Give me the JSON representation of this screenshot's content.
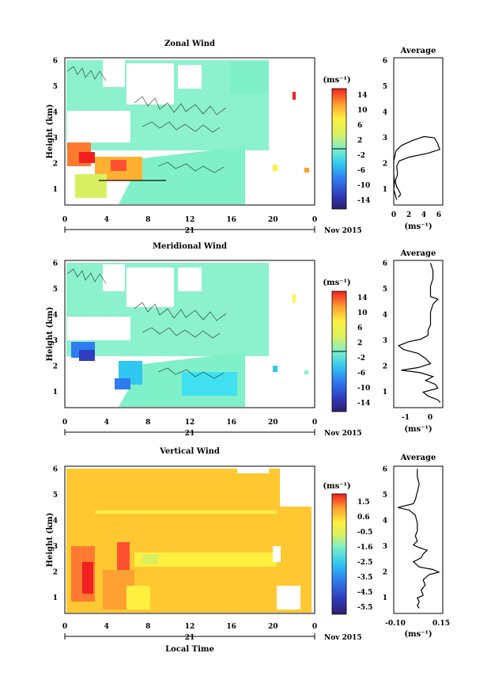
{
  "charts": [
    {
      "id": "zonal",
      "title": "Zonal Wind",
      "y_label": "Height (km)",
      "unit": "(ms⁻¹)",
      "cbar_ticks": [
        "14",
        "10",
        "6",
        "2",
        "-2",
        "-6",
        "-10",
        "-14"
      ],
      "avg_title": "Average",
      "avg_xticks": [
        "0",
        "2",
        "4",
        "6"
      ],
      "avg_unit": "(ms⁻¹)",
      "avg_profile": [
        [
          0.4,
          0.5
        ],
        [
          0.2,
          0.7
        ],
        [
          0.0,
          0.9
        ],
        [
          0.1,
          1.2
        ],
        [
          0.0,
          1.5
        ],
        [
          0.0,
          2.0
        ],
        [
          0.3,
          2.4
        ],
        [
          1.0,
          2.6
        ],
        [
          2.5,
          2.8
        ],
        [
          4.0,
          2.95
        ],
        [
          5.4,
          2.9
        ],
        [
          5.8,
          2.7
        ],
        [
          6.1,
          2.45
        ],
        [
          4.5,
          2.3
        ],
        [
          2.0,
          2.15
        ],
        [
          0.7,
          2.0
        ],
        [
          0.4,
          1.8
        ],
        [
          0.5,
          1.5
        ],
        [
          0.2,
          1.2
        ],
        [
          0.4,
          1.0
        ],
        [
          0.8,
          0.8
        ],
        [
          0.9,
          0.7
        ],
        [
          0.6,
          0.6
        ]
      ]
    },
    {
      "id": "meridional",
      "title": "Meridional Wind",
      "y_label": "Height (km)",
      "unit": "(ms⁻¹)",
      "cbar_ticks": [
        "14",
        "10",
        "6",
        "2",
        "-2",
        "-6",
        "-10",
        "-14"
      ],
      "avg_title": "Average",
      "avg_xticks": [
        "-1",
        "0"
      ],
      "avg_unit": "(ms⁻¹)",
      "avg_profile": [
        [
          0.0,
          5.9
        ],
        [
          0.1,
          5.6
        ],
        [
          0.1,
          5.3
        ],
        [
          0.0,
          5.0
        ],
        [
          0.0,
          4.8
        ],
        [
          0.0,
          4.6
        ],
        [
          0.3,
          4.5
        ],
        [
          0.1,
          4.3
        ],
        [
          0.0,
          4.0
        ],
        [
          0.0,
          3.8
        ],
        [
          0.0,
          3.5
        ],
        [
          -0.1,
          3.3
        ],
        [
          -0.1,
          3.1
        ],
        [
          -0.4,
          2.95
        ],
        [
          -0.9,
          2.85
        ],
        [
          -1.3,
          2.7
        ],
        [
          -1.1,
          2.55
        ],
        [
          -0.5,
          2.4
        ],
        [
          -0.2,
          2.2
        ],
        [
          0.0,
          2.0
        ],
        [
          -0.5,
          1.85
        ],
        [
          -1.2,
          1.75
        ],
        [
          -0.4,
          1.65
        ],
        [
          0.1,
          1.5
        ],
        [
          -0.2,
          1.35
        ],
        [
          0.2,
          1.2
        ],
        [
          0.3,
          1.05
        ],
        [
          -0.3,
          0.9
        ],
        [
          -0.1,
          0.75
        ],
        [
          0.3,
          0.6
        ],
        [
          0.4,
          0.5
        ]
      ]
    },
    {
      "id": "vertical",
      "title": "Vertical Wind",
      "y_label": "Height (km)",
      "unit": "(ms⁻¹)",
      "cbar_ticks": [
        "1.5",
        "0.6",
        "-0.5",
        "-1.6",
        "-2.5",
        "-3.5",
        "-4.5",
        "-5.5"
      ],
      "avg_title": "Average",
      "avg_xticks": [
        "-0.10",
        "0.15"
      ],
      "avg_unit": "(ms⁻¹)",
      "avg_profile": [
        [
          0.02,
          5.9
        ],
        [
          0.02,
          5.6
        ],
        [
          0.03,
          5.3
        ],
        [
          0.02,
          5.0
        ],
        [
          0.01,
          4.7
        ],
        [
          0.0,
          4.55
        ],
        [
          -0.08,
          4.4
        ],
        [
          -0.02,
          4.3
        ],
        [
          0.01,
          4.1
        ],
        [
          0.02,
          3.8
        ],
        [
          0.02,
          3.5
        ],
        [
          0.01,
          3.3
        ],
        [
          0.02,
          3.1
        ],
        [
          0.0,
          2.95
        ],
        [
          0.03,
          2.85
        ],
        [
          0.07,
          2.75
        ],
        [
          0.05,
          2.6
        ],
        [
          0.04,
          2.45
        ],
        [
          0.0,
          2.3
        ],
        [
          0.03,
          2.1
        ],
        [
          0.1,
          2.0
        ],
        [
          0.13,
          1.9
        ],
        [
          0.08,
          1.8
        ],
        [
          0.05,
          1.6
        ],
        [
          0.06,
          1.4
        ],
        [
          0.04,
          1.2
        ],
        [
          0.05,
          1.0
        ],
        [
          0.02,
          0.9
        ],
        [
          0.03,
          0.75
        ],
        [
          0.02,
          0.6
        ],
        [
          0.03,
          0.5
        ]
      ]
    }
  ],
  "x_ticks": [
    "0",
    "4",
    "8",
    "12",
    "16",
    "20",
    "0"
  ],
  "date_day": "21",
  "date_month": "Nov 2015",
  "y_ticks": [
    "1",
    "2",
    "3",
    "4",
    "5",
    "6"
  ],
  "x_label": "Local Time",
  "chart_data": [
    {
      "type": "heatmap",
      "title": "Zonal Wind",
      "ylabel": "Height (km)",
      "xlabel": "",
      "xlim": [
        0,
        24
      ],
      "ylim": [
        0.3,
        6
      ],
      "colorbar": {
        "label": "(ms⁻¹)",
        "range": [
          -16,
          16
        ],
        "ticks": [
          14,
          10,
          6,
          2,
          -2,
          -6,
          -10,
          -14
        ]
      }
    },
    {
      "type": "line",
      "title": "Average",
      "xlabel": "(ms⁻¹)",
      "ylabel": "",
      "xlim": [
        0,
        6.5
      ],
      "ylim": [
        0.3,
        6
      ],
      "x": [
        0.4,
        0.2,
        0.0,
        0.1,
        0.0,
        0.0,
        0.3,
        1.0,
        2.5,
        4.0,
        5.4,
        5.8,
        6.1,
        4.5,
        2.0,
        0.7,
        0.4,
        0.5,
        0.2,
        0.4,
        0.8,
        0.9,
        0.6
      ],
      "y": [
        0.5,
        0.7,
        0.9,
        1.2,
        1.5,
        2.0,
        2.4,
        2.6,
        2.8,
        2.95,
        2.9,
        2.7,
        2.45,
        2.3,
        2.15,
        2.0,
        1.8,
        1.5,
        1.2,
        1.0,
        0.8,
        0.7,
        0.6
      ]
    },
    {
      "type": "heatmap",
      "title": "Meridional Wind",
      "ylabel": "Height (km)",
      "xlabel": "",
      "xlim": [
        0,
        24
      ],
      "ylim": [
        0.3,
        6
      ],
      "colorbar": {
        "label": "(ms⁻¹)",
        "range": [
          -16,
          16
        ],
        "ticks": [
          14,
          10,
          6,
          2,
          -2,
          -6,
          -10,
          -14
        ]
      }
    },
    {
      "type": "line",
      "title": "Average",
      "xlabel": "(ms⁻¹)",
      "ylabel": "",
      "xlim": [
        -1.5,
        0.5
      ],
      "ylim": [
        0.3,
        6
      ],
      "x": [
        0.0,
        0.1,
        0.1,
        0.0,
        0.0,
        0.0,
        0.3,
        0.1,
        0.0,
        0.0,
        0.0,
        -0.1,
        -0.1,
        -0.4,
        -0.9,
        -1.3,
        -1.1,
        -0.5,
        -0.2,
        0.0,
        -0.5,
        -1.2,
        -0.4,
        0.1,
        -0.2,
        0.2,
        0.3,
        -0.3,
        -0.1,
        0.3,
        0.4
      ],
      "y": [
        5.9,
        5.6,
        5.3,
        5.0,
        4.8,
        4.6,
        4.5,
        4.3,
        4.0,
        3.8,
        3.5,
        3.3,
        3.1,
        2.95,
        2.85,
        2.7,
        2.55,
        2.4,
        2.2,
        2.0,
        1.85,
        1.75,
        1.65,
        1.5,
        1.35,
        1.2,
        1.05,
        0.9,
        0.75,
        0.6,
        0.5
      ]
    },
    {
      "type": "heatmap",
      "title": "Vertical Wind",
      "ylabel": "Height (km)",
      "xlabel": "Local Time",
      "xlim": [
        0,
        24
      ],
      "ylim": [
        0.3,
        6
      ],
      "colorbar": {
        "label": "(ms⁻¹)",
        "range": [
          -6,
          2
        ],
        "ticks": [
          1.5,
          0.6,
          -0.5,
          -1.6,
          -2.5,
          -3.5,
          -4.5,
          -5.5
        ]
      }
    },
    {
      "type": "line",
      "title": "Average",
      "xlabel": "(ms⁻¹)",
      "ylabel": "",
      "xlim": [
        -0.1,
        0.15
      ],
      "ylim": [
        0.3,
        6
      ],
      "x": [
        0.02,
        0.02,
        0.03,
        0.02,
        0.01,
        0.0,
        -0.08,
        -0.02,
        0.01,
        0.02,
        0.02,
        0.01,
        0.02,
        0.0,
        0.03,
        0.07,
        0.05,
        0.04,
        0.0,
        0.03,
        0.1,
        0.13,
        0.08,
        0.05,
        0.06,
        0.04,
        0.05,
        0.02,
        0.03,
        0.02,
        0.03
      ],
      "y": [
        5.9,
        5.6,
        5.3,
        5.0,
        4.7,
        4.55,
        4.4,
        4.3,
        4.1,
        3.8,
        3.5,
        3.3,
        3.1,
        2.95,
        2.85,
        2.75,
        2.6,
        2.45,
        2.3,
        2.1,
        2.0,
        1.9,
        1.8,
        1.6,
        1.4,
        1.2,
        1.0,
        0.9,
        0.75,
        0.6,
        0.5
      ]
    }
  ]
}
